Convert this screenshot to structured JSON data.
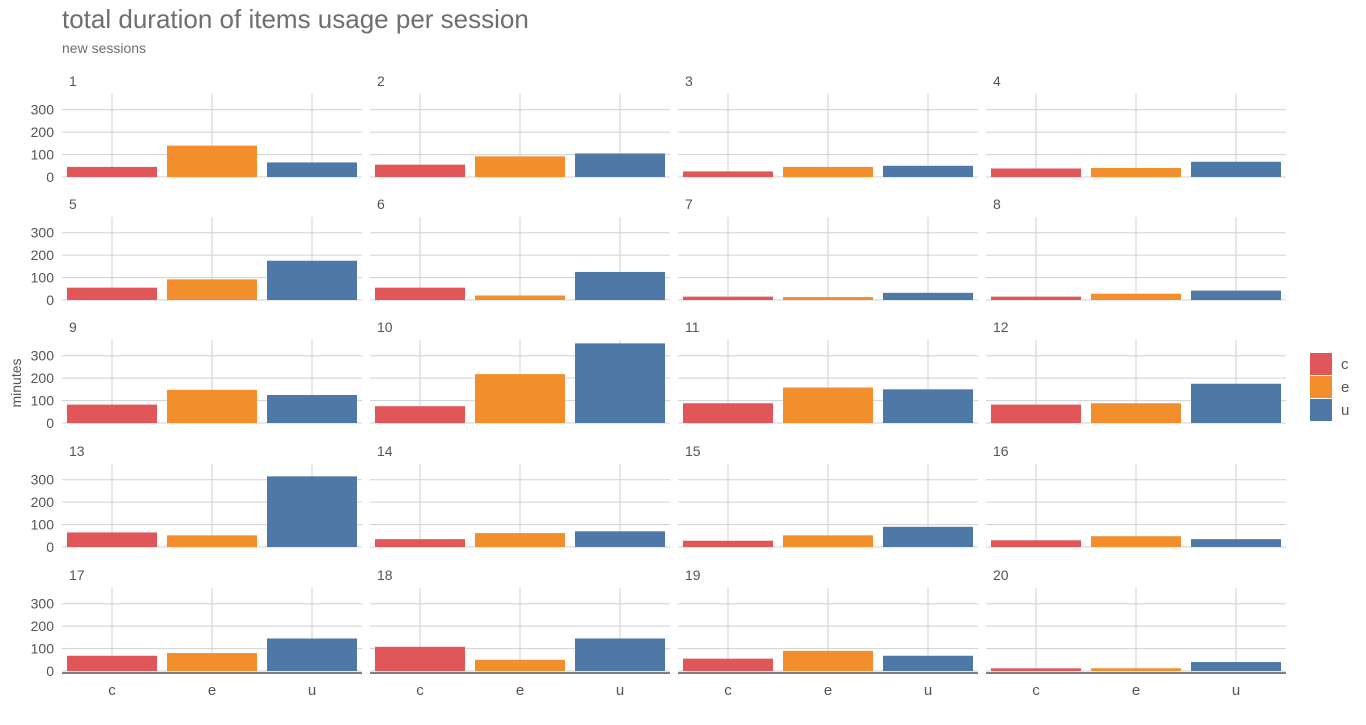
{
  "chart_data": {
    "type": "bar",
    "title": "total duration of items usage per session",
    "subtitle": "new sessions",
    "ylabel": "minutes",
    "xlabel": "",
    "ylim": [
      0,
      370
    ],
    "yticks": [
      0,
      100,
      200,
      300
    ],
    "categories": [
      "c",
      "e",
      "u"
    ],
    "colors": {
      "c": "#e15759",
      "e": "#f28e2b",
      "u": "#4e79a7"
    },
    "legend": {
      "position": "right",
      "entries": [
        "c",
        "e",
        "u"
      ]
    },
    "grid": true,
    "facets": [
      {
        "label": "1",
        "values": [
          45,
          140,
          65
        ]
      },
      {
        "label": "2",
        "values": [
          55,
          92,
          105
        ]
      },
      {
        "label": "3",
        "values": [
          25,
          45,
          50
        ]
      },
      {
        "label": "4",
        "values": [
          38,
          40,
          68
        ]
      },
      {
        "label": "5",
        "values": [
          55,
          92,
          175
        ]
      },
      {
        "label": "6",
        "values": [
          55,
          20,
          125
        ]
      },
      {
        "label": "7",
        "values": [
          15,
          13,
          32
        ]
      },
      {
        "label": "8",
        "values": [
          15,
          28,
          42
        ]
      },
      {
        "label": "9",
        "values": [
          82,
          148,
          125
        ]
      },
      {
        "label": "10",
        "values": [
          75,
          218,
          355
        ]
      },
      {
        "label": "11",
        "values": [
          88,
          158,
          150
        ]
      },
      {
        "label": "12",
        "values": [
          82,
          88,
          175
        ]
      },
      {
        "label": "13",
        "values": [
          65,
          52,
          315
        ]
      },
      {
        "label": "14",
        "values": [
          35,
          62,
          70
        ]
      },
      {
        "label": "15",
        "values": [
          28,
          52,
          90
        ]
      },
      {
        "label": "16",
        "values": [
          30,
          48,
          35
        ]
      },
      {
        "label": "17",
        "values": [
          68,
          80,
          145
        ]
      },
      {
        "label": "18",
        "values": [
          108,
          50,
          145
        ]
      },
      {
        "label": "19",
        "values": [
          55,
          90,
          68
        ]
      },
      {
        "label": "20",
        "values": [
          12,
          12,
          40
        ]
      }
    ]
  }
}
